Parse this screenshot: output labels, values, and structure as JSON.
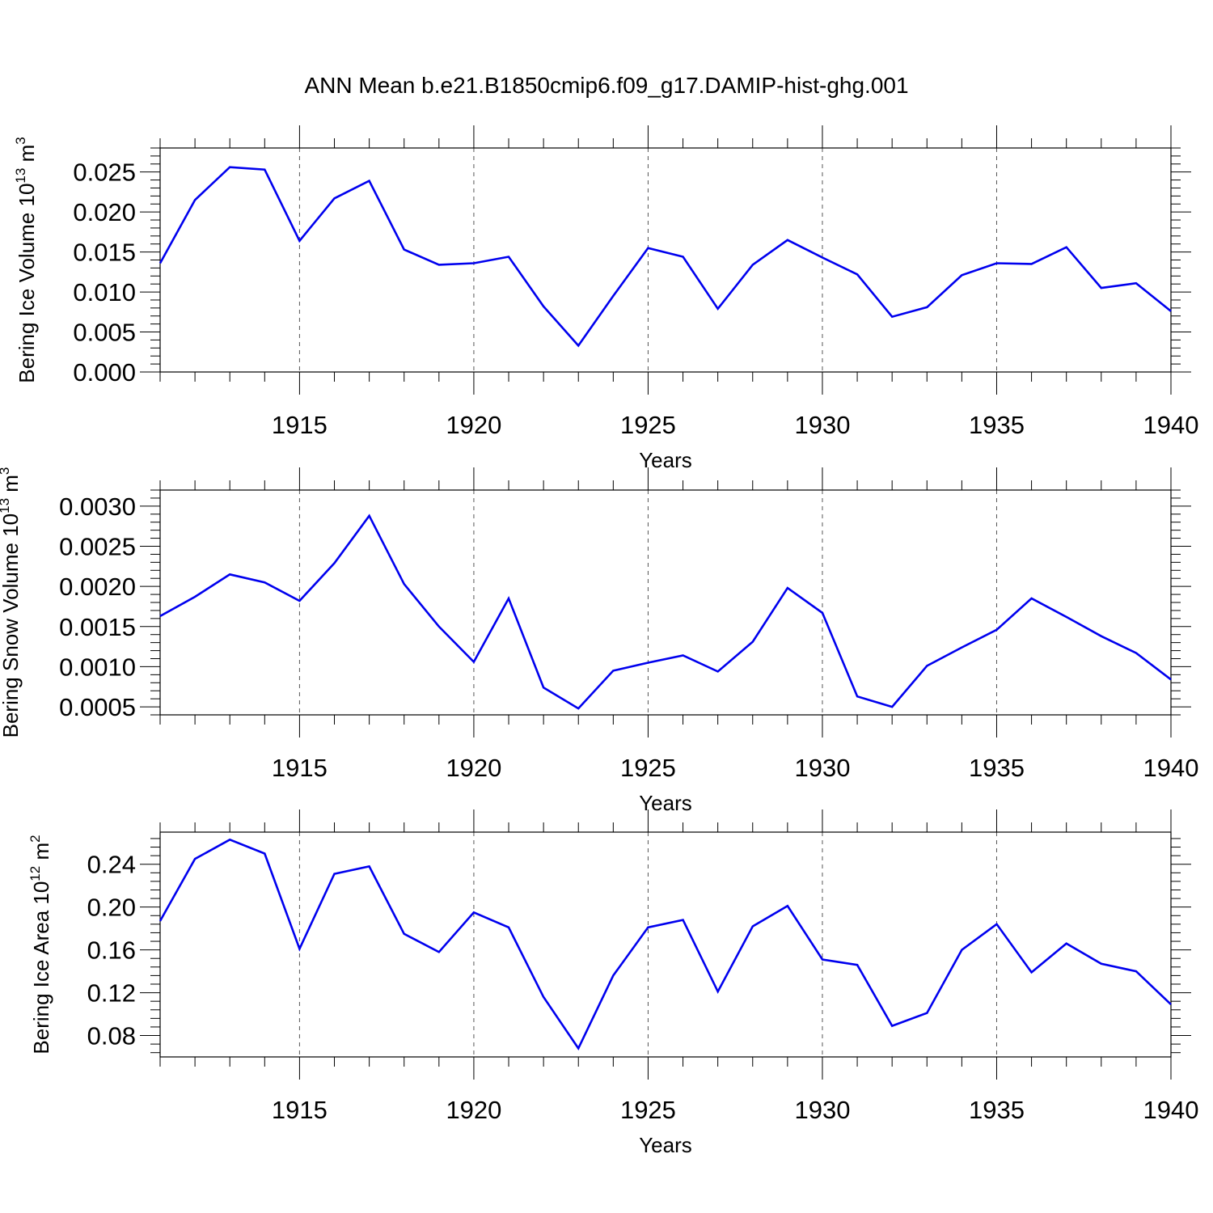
{
  "title": "ANN Mean b.e21.B1850cmip6.f09_g17.DAMIP-hist-ghg.001",
  "colors": {
    "line": "#0000ee",
    "axis": "#000000",
    "grid": "#555555"
  },
  "chart_data": [
    {
      "type": "line",
      "ylabel": "Bering Ice Volume",
      "ylabel_unit_base": "10",
      "ylabel_unit_exp": "13",
      "ylabel_unit_name": "m",
      "ylabel_unit_power": "3",
      "xlabel": "Years",
      "xlim": [
        1911,
        1940
      ],
      "ylim": [
        0,
        0.028
      ],
      "xticks": [
        1915,
        1920,
        1925,
        1930,
        1935,
        1940
      ],
      "yticks": [
        0.0,
        0.005,
        0.01,
        0.015,
        0.02,
        0.025
      ],
      "ytick_labels": [
        "0.000",
        "0.005",
        "0.010",
        "0.015",
        "0.020",
        "0.025"
      ],
      "x": [
        1911,
        1912,
        1913,
        1914,
        1915,
        1916,
        1917,
        1918,
        1919,
        1920,
        1921,
        1922,
        1923,
        1924,
        1925,
        1926,
        1927,
        1928,
        1929,
        1930,
        1931,
        1932,
        1933,
        1934,
        1935,
        1936,
        1937,
        1938,
        1939,
        1940
      ],
      "y": [
        0.0136,
        0.0215,
        0.0256,
        0.0253,
        0.0164,
        0.0217,
        0.0239,
        0.0153,
        0.0134,
        0.0136,
        0.0144,
        0.0082,
        0.0033,
        0.0095,
        0.0155,
        0.0144,
        0.0079,
        0.0134,
        0.0165,
        0.0143,
        0.0122,
        0.0069,
        0.0081,
        0.0121,
        0.0136,
        0.0135,
        0.0156,
        0.0105,
        0.0111,
        0.0076
      ]
    },
    {
      "type": "line",
      "ylabel": "Bering Snow Volume",
      "ylabel_unit_base": "10",
      "ylabel_unit_exp": "13",
      "ylabel_unit_name": "m",
      "ylabel_unit_power": "3",
      "xlabel": "Years",
      "xlim": [
        1911,
        1940
      ],
      "ylim": [
        0.0004,
        0.0032
      ],
      "xticks": [
        1915,
        1920,
        1925,
        1930,
        1935,
        1940
      ],
      "yticks": [
        0.0005,
        0.001,
        0.0015,
        0.002,
        0.0025,
        0.003
      ],
      "ytick_labels": [
        "0.0005",
        "0.0010",
        "0.0015",
        "0.0020",
        "0.0025",
        "0.0030"
      ],
      "x": [
        1911,
        1912,
        1913,
        1914,
        1915,
        1916,
        1917,
        1918,
        1919,
        1920,
        1921,
        1922,
        1923,
        1924,
        1925,
        1926,
        1927,
        1928,
        1929,
        1930,
        1931,
        1932,
        1933,
        1934,
        1935,
        1936,
        1937,
        1938,
        1939,
        1940
      ],
      "y": [
        0.00163,
        0.00187,
        0.00215,
        0.00205,
        0.00182,
        0.00229,
        0.00288,
        0.00203,
        0.0015,
        0.00106,
        0.00185,
        0.00074,
        0.00048,
        0.00095,
        0.00105,
        0.00114,
        0.00094,
        0.00131,
        0.00198,
        0.00167,
        0.00063,
        0.0005,
        0.00101,
        0.00124,
        0.00146,
        0.00185,
        0.00162,
        0.00138,
        0.00117,
        0.00084
      ]
    },
    {
      "type": "line",
      "ylabel": "Bering Ice Area",
      "ylabel_unit_base": "10",
      "ylabel_unit_exp": "12",
      "ylabel_unit_name": "m",
      "ylabel_unit_power": "2",
      "xlabel": "Years",
      "xlim": [
        1911,
        1940
      ],
      "ylim": [
        0.06,
        0.27
      ],
      "xticks": [
        1915,
        1920,
        1925,
        1930,
        1935,
        1940
      ],
      "yticks": [
        0.08,
        0.12,
        0.16,
        0.2,
        0.24
      ],
      "ytick_labels": [
        "0.08",
        "0.12",
        "0.16",
        "0.20",
        "0.24"
      ],
      "x": [
        1911,
        1912,
        1913,
        1914,
        1915,
        1916,
        1917,
        1918,
        1919,
        1920,
        1921,
        1922,
        1923,
        1924,
        1925,
        1926,
        1927,
        1928,
        1929,
        1930,
        1931,
        1932,
        1933,
        1934,
        1935,
        1936,
        1937,
        1938,
        1939,
        1940
      ],
      "y": [
        0.187,
        0.245,
        0.263,
        0.25,
        0.161,
        0.231,
        0.238,
        0.175,
        0.158,
        0.195,
        0.181,
        0.116,
        0.068,
        0.136,
        0.181,
        0.188,
        0.121,
        0.182,
        0.201,
        0.151,
        0.146,
        0.089,
        0.101,
        0.16,
        0.184,
        0.139,
        0.166,
        0.147,
        0.14,
        0.109
      ]
    }
  ]
}
